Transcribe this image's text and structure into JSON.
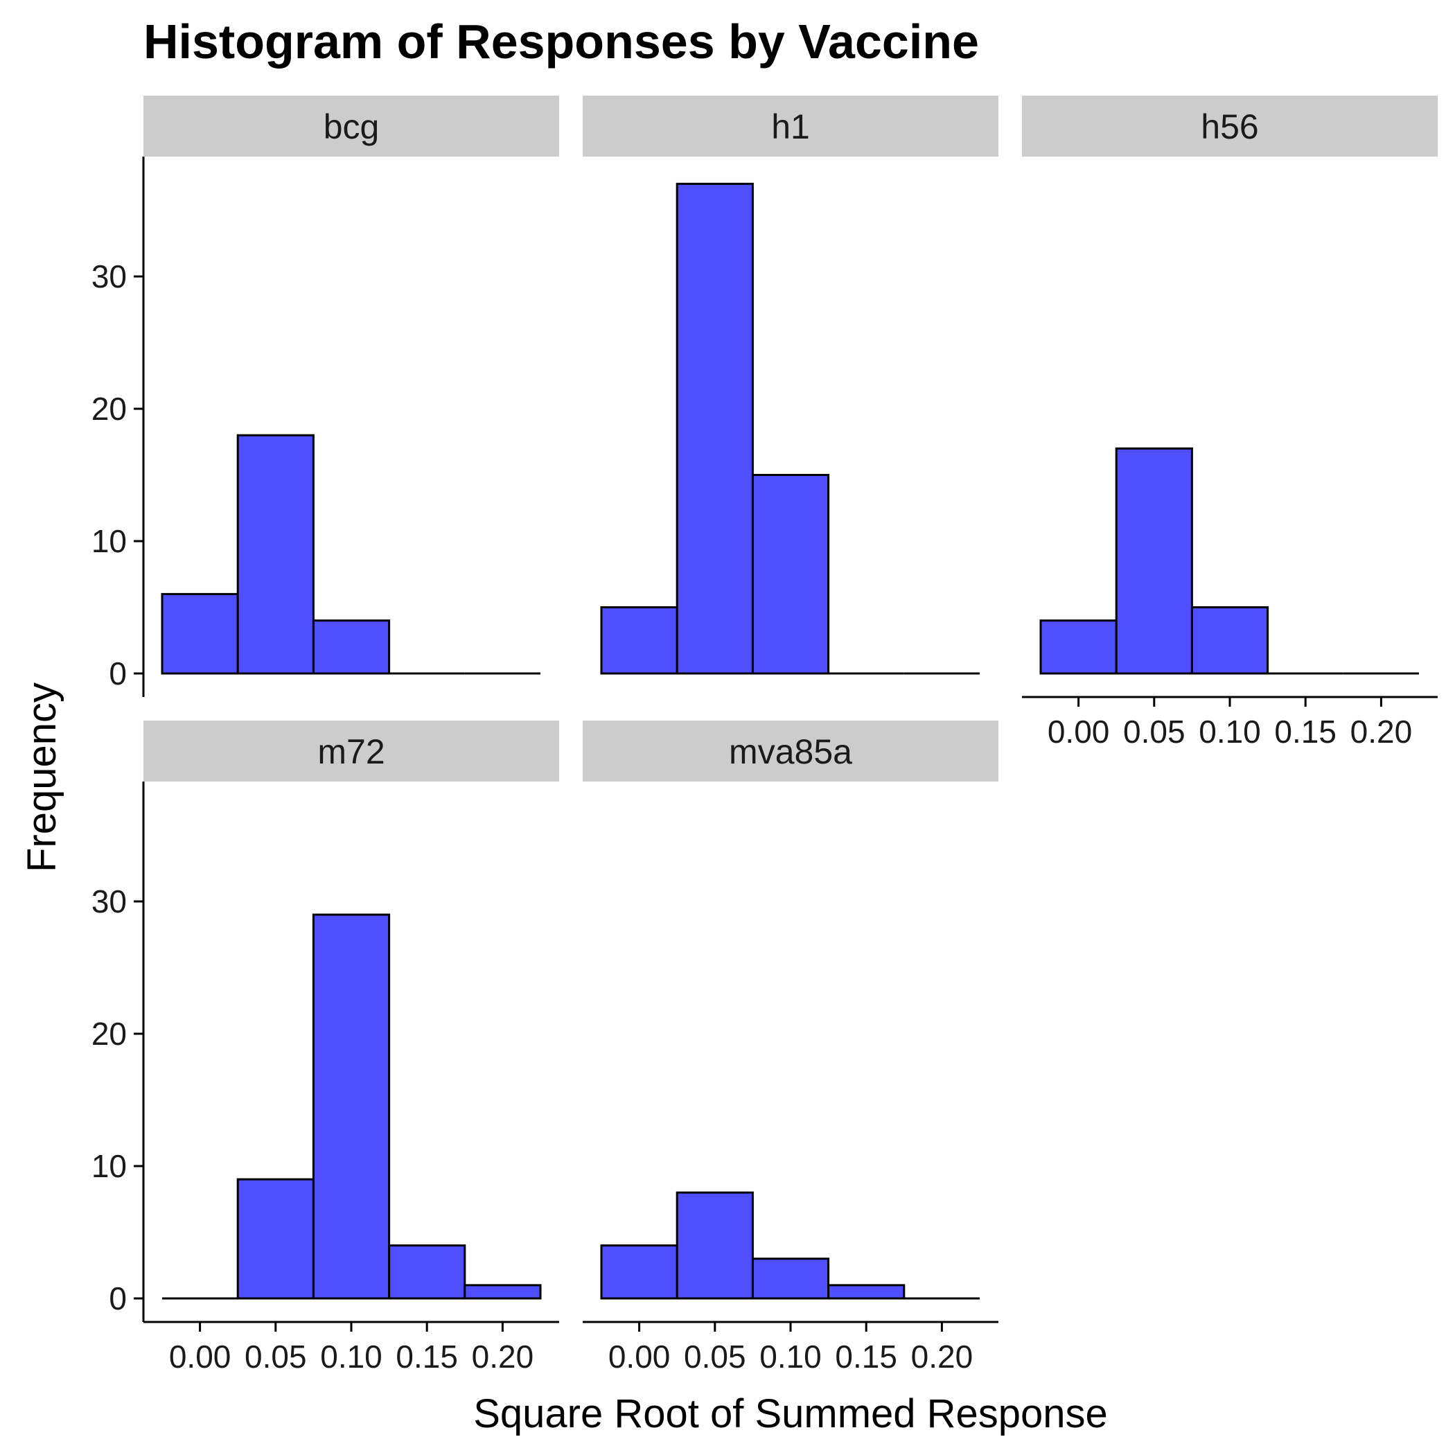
{
  "chart_data": {
    "type": "bar",
    "title": "Histogram of Responses by Vaccine",
    "xlabel": "Square Root of Summed Response",
    "ylabel": "Frequency",
    "bins": [
      {
        "from": -0.025,
        "to": 0.025
      },
      {
        "from": 0.025,
        "to": 0.075
      },
      {
        "from": 0.075,
        "to": 0.125
      },
      {
        "from": 0.125,
        "to": 0.175
      },
      {
        "from": 0.175,
        "to": 0.225
      }
    ],
    "xlim": [
      -0.025,
      0.225
    ],
    "ylim": [
      0,
      37
    ],
    "x_ticks": [
      0.0,
      0.05,
      0.1,
      0.15,
      0.2
    ],
    "x_tick_labels": [
      "0.00",
      "0.05",
      "0.10",
      "0.15",
      "0.20"
    ],
    "y_ticks": [
      0,
      10,
      20,
      30
    ],
    "y_tick_labels": [
      "0",
      "10",
      "20",
      "30"
    ],
    "fill_color": "#4f4fff",
    "edge_color": "#000000",
    "strip_color": "#cccccc",
    "panels": [
      {
        "name": "bcg",
        "values": [
          6,
          18,
          4,
          0,
          0
        ]
      },
      {
        "name": "h1",
        "values": [
          5,
          37,
          15,
          0,
          0
        ]
      },
      {
        "name": "h56",
        "values": [
          4,
          17,
          5,
          0,
          0
        ]
      },
      {
        "name": "m72",
        "values": [
          0,
          9,
          29,
          4,
          1
        ]
      },
      {
        "name": "mva85a",
        "values": [
          4,
          8,
          3,
          1,
          0
        ]
      }
    ]
  }
}
